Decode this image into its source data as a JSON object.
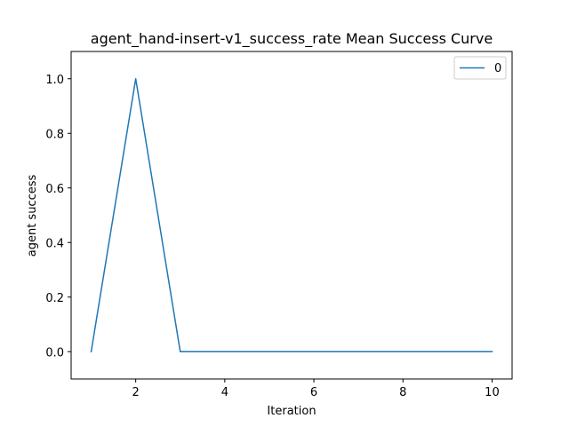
{
  "chart_data": {
    "type": "line",
    "title": "agent_hand-insert-v1_success_rate Mean Success Curve",
    "xlabel": "Iteration",
    "ylabel": "agent success",
    "xlim": [
      0.55,
      10.45
    ],
    "ylim": [
      -0.1,
      1.1
    ],
    "xticks": [
      2,
      4,
      6,
      8,
      10
    ],
    "yticks": [
      0.0,
      0.2,
      0.4,
      0.6,
      0.8,
      1.0
    ],
    "xtick_labels": [
      "2",
      "4",
      "6",
      "8",
      "10"
    ],
    "ytick_labels": [
      "0.0",
      "0.2",
      "0.4",
      "0.6",
      "0.8",
      "1.0"
    ],
    "x": [
      1,
      2,
      3,
      4,
      5,
      6,
      7,
      8,
      9,
      10
    ],
    "series": [
      {
        "name": "0",
        "values": [
          0,
          1,
          0,
          0,
          0,
          0,
          0,
          0,
          0,
          0
        ],
        "color": "#1f77b4"
      }
    ],
    "grid": false,
    "legend_position": "top-right"
  }
}
